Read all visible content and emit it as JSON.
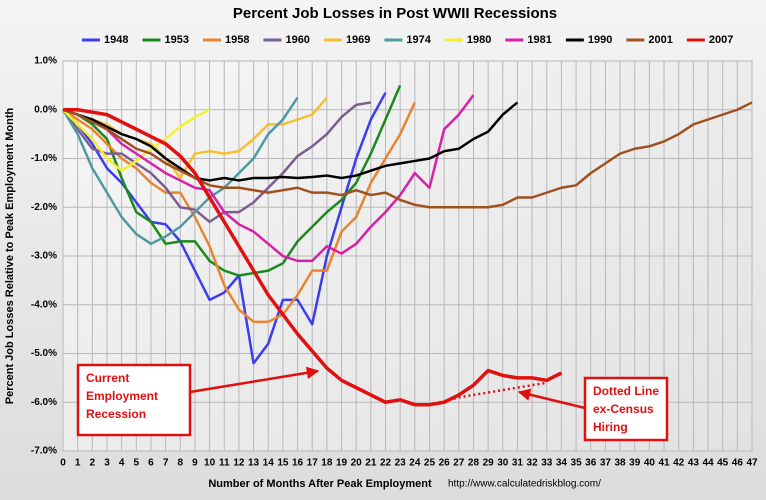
{
  "chart_data": {
    "type": "line",
    "title": "Percent Job Losses in Post WWII Recessions",
    "x_label": "Number of Months After Peak Employment",
    "y_label": "Percent Job Losses Relative to Peak Employment Month",
    "source": "http://www.calculatedriskblog.com/",
    "grid": true,
    "x": [
      0,
      1,
      2,
      3,
      4,
      5,
      6,
      7,
      8,
      9,
      10,
      11,
      12,
      13,
      14,
      15,
      16,
      17,
      18,
      19,
      20,
      21,
      22,
      23,
      24,
      25,
      26,
      27,
      28,
      29,
      30,
      31,
      32,
      33,
      34,
      35,
      36,
      37,
      38,
      39,
      40,
      41,
      42,
      43,
      44,
      45,
      46,
      47
    ],
    "xlim": [
      0,
      47
    ],
    "xticks": [
      0,
      1,
      2,
      3,
      4,
      5,
      6,
      7,
      8,
      9,
      10,
      11,
      12,
      13,
      14,
      15,
      16,
      17,
      18,
      19,
      20,
      21,
      22,
      23,
      24,
      25,
      26,
      27,
      28,
      29,
      30,
      31,
      32,
      33,
      34,
      35,
      36,
      37,
      38,
      39,
      40,
      41,
      42,
      43,
      44,
      45,
      46,
      47
    ],
    "ylim": [
      -7,
      1
    ],
    "yticks": [
      {
        "value": 1,
        "label": "1.0%"
      },
      {
        "value": 0,
        "label": "0.0%"
      },
      {
        "value": -1,
        "label": "-1.0%"
      },
      {
        "value": -2,
        "label": "-2.0%"
      },
      {
        "value": -3,
        "label": "-3.0%"
      },
      {
        "value": -4,
        "label": "-4.0%"
      },
      {
        "value": -5,
        "label": "-5.0%"
      },
      {
        "value": -6,
        "label": "-6.0%"
      },
      {
        "value": -7,
        "label": "-7.0%"
      }
    ],
    "series": [
      {
        "name": "1948",
        "color": "#3c3cf0",
        "values": [
          0,
          -0.3,
          -0.7,
          -1.2,
          -1.5,
          -1.9,
          -2.3,
          -2.35,
          -2.7,
          -3.3,
          -3.9,
          -3.75,
          -3.4,
          -5.2,
          -4.8,
          -3.9,
          -3.9,
          -4.4,
          -3.0,
          -2.0,
          -1.0,
          -0.2,
          0.35,
          null,
          null,
          null,
          null,
          null,
          null,
          null,
          null,
          null,
          null,
          null,
          null,
          null,
          null,
          null,
          null,
          null,
          null,
          null,
          null,
          null,
          null,
          null,
          null,
          null
        ]
      },
      {
        "name": "1953",
        "color": "#1a8a1a",
        "values": [
          0,
          -0.1,
          -0.3,
          -0.6,
          -1.4,
          -2.1,
          -2.3,
          -2.75,
          -2.7,
          -2.7,
          -3.1,
          -3.3,
          -3.4,
          -3.35,
          -3.3,
          -3.15,
          -2.7,
          -2.4,
          -2.1,
          -1.85,
          -1.5,
          -0.9,
          -0.2,
          0.5,
          null,
          null,
          null,
          null,
          null,
          null,
          null,
          null,
          null,
          null,
          null,
          null,
          null,
          null,
          null,
          null,
          null,
          null,
          null,
          null,
          null,
          null,
          null,
          null
        ]
      },
      {
        "name": "1958",
        "color": "#e8852e",
        "values": [
          0,
          -0.2,
          -0.4,
          -0.7,
          -1.0,
          -1.2,
          -1.5,
          -1.7,
          -1.7,
          -2.2,
          -2.8,
          -3.6,
          -4.1,
          -4.35,
          -4.35,
          -4.2,
          -3.8,
          -3.3,
          -3.3,
          -2.5,
          -2.2,
          -1.5,
          -1.0,
          -0.5,
          0.15,
          null,
          null,
          null,
          null,
          null,
          null,
          null,
          null,
          null,
          null,
          null,
          null,
          null,
          null,
          null,
          null,
          null,
          null,
          null,
          null,
          null,
          null,
          null
        ]
      },
      {
        "name": "1960",
        "color": "#7b5e8e",
        "values": [
          0,
          -0.4,
          -0.8,
          -0.9,
          -0.9,
          -1.1,
          -1.3,
          -1.6,
          -2.0,
          -2.05,
          -2.3,
          -2.1,
          -2.1,
          -1.9,
          -1.6,
          -1.3,
          -0.95,
          -0.75,
          -0.5,
          -0.15,
          0.1,
          0.15,
          null,
          null,
          null,
          null,
          null,
          null,
          null,
          null,
          null,
          null,
          null,
          null,
          null,
          null,
          null,
          null,
          null,
          null,
          null,
          null,
          null,
          null,
          null,
          null,
          null,
          null
        ]
      },
      {
        "name": "1969",
        "color": "#f5c030",
        "values": [
          0,
          -0.1,
          -0.2,
          -0.3,
          -0.5,
          -0.6,
          -0.7,
          -1.0,
          -1.4,
          -0.9,
          -0.85,
          -0.9,
          -0.85,
          -0.6,
          -0.3,
          -0.3,
          -0.2,
          -0.1,
          0.25,
          null,
          null,
          null,
          null,
          null,
          null,
          null,
          null,
          null,
          null,
          null,
          null,
          null,
          null,
          null,
          null,
          null,
          null,
          null,
          null,
          null,
          null,
          null,
          null,
          null,
          null,
          null,
          null,
          null
        ]
      },
      {
        "name": "1974",
        "color": "#4e9aa0",
        "values": [
          0,
          -0.5,
          -1.2,
          -1.7,
          -2.2,
          -2.55,
          -2.75,
          -2.6,
          -2.4,
          -2.1,
          -1.8,
          -1.6,
          -1.3,
          -1.0,
          -0.5,
          -0.2,
          0.25,
          null,
          null,
          null,
          null,
          null,
          null,
          null,
          null,
          null,
          null,
          null,
          null,
          null,
          null,
          null,
          null,
          null,
          null,
          null,
          null,
          null,
          null,
          null,
          null,
          null,
          null,
          null,
          null,
          null,
          null,
          null
        ]
      },
      {
        "name": "1980",
        "color": "#f2f030",
        "values": [
          0,
          -0.3,
          -0.6,
          -1.0,
          -1.25,
          -1.05,
          -0.8,
          -0.6,
          -0.35,
          -0.15,
          0.0,
          null,
          null,
          null,
          null,
          null,
          null,
          null,
          null,
          null,
          null,
          null,
          null,
          null,
          null,
          null,
          null,
          null,
          null,
          null,
          null,
          null,
          null,
          null,
          null,
          null,
          null,
          null,
          null,
          null,
          null,
          null,
          null,
          null,
          null,
          null,
          null,
          null
        ]
      },
      {
        "name": "1981",
        "color": "#d81fa8",
        "values": [
          0,
          -0.1,
          -0.2,
          -0.4,
          -0.7,
          -0.9,
          -1.1,
          -1.3,
          -1.45,
          -1.6,
          -1.65,
          -2.1,
          -2.35,
          -2.5,
          -2.75,
          -3.0,
          -3.1,
          -3.1,
          -2.8,
          -2.95,
          -2.75,
          -2.4,
          -2.1,
          -1.75,
          -1.3,
          -1.6,
          -0.4,
          -0.1,
          0.3,
          null,
          null,
          null,
          null,
          null,
          null,
          null,
          null,
          null,
          null,
          null,
          null,
          null,
          null,
          null,
          null,
          null,
          null,
          null
        ]
      },
      {
        "name": "1990",
        "color": "#000000",
        "values": [
          0,
          -0.1,
          -0.2,
          -0.35,
          -0.5,
          -0.6,
          -0.75,
          -1.0,
          -1.2,
          -1.4,
          -1.45,
          -1.4,
          -1.45,
          -1.4,
          -1.4,
          -1.38,
          -1.4,
          -1.38,
          -1.35,
          -1.4,
          -1.35,
          -1.25,
          -1.15,
          -1.1,
          -1.05,
          -1.0,
          -0.85,
          -0.8,
          -0.6,
          -0.45,
          -0.1,
          0.15,
          null,
          null,
          null,
          null,
          null,
          null,
          null,
          null,
          null,
          null,
          null,
          null,
          null,
          null,
          null,
          null
        ]
      },
      {
        "name": "2001",
        "color": "#a0501e",
        "values": [
          0,
          -0.1,
          -0.25,
          -0.4,
          -0.6,
          -0.8,
          -0.9,
          -1.1,
          -1.25,
          -1.4,
          -1.55,
          -1.6,
          -1.6,
          -1.65,
          -1.7,
          -1.65,
          -1.6,
          -1.7,
          -1.7,
          -1.75,
          -1.65,
          -1.75,
          -1.7,
          -1.85,
          -1.95,
          -2.0,
          -2.0,
          -2.0,
          -2.0,
          -2.0,
          -1.95,
          -1.8,
          -1.8,
          -1.7,
          -1.6,
          -1.55,
          -1.3,
          -1.1,
          -0.9,
          -0.8,
          -0.75,
          -0.65,
          -0.5,
          -0.3,
          -0.2,
          -0.1,
          0.0,
          0.15
        ]
      },
      {
        "name": "2007",
        "color": "#e01010",
        "width": 3.5,
        "values": [
          0,
          0,
          -0.05,
          -0.1,
          -0.25,
          -0.4,
          -0.55,
          -0.7,
          -0.95,
          -1.3,
          -1.8,
          -2.3,
          -2.8,
          -3.3,
          -3.8,
          -4.2,
          -4.6,
          -4.95,
          -5.3,
          -5.55,
          -5.7,
          -5.85,
          -6.0,
          -5.95,
          -6.05,
          -6.05,
          -6.0,
          -5.85,
          -5.65,
          -5.35,
          -5.45,
          -5.5,
          -5.5,
          -5.55,
          -5.4,
          null,
          null,
          null,
          null,
          null,
          null,
          null,
          null,
          null,
          null,
          null,
          null,
          null
        ]
      },
      {
        "color": "#e01010",
        "style": "dotted",
        "values": [
          null,
          null,
          null,
          null,
          null,
          null,
          null,
          null,
          null,
          null,
          null,
          null,
          null,
          null,
          null,
          null,
          null,
          null,
          null,
          null,
          null,
          null,
          null,
          null,
          null,
          -6.05,
          -5.98,
          -5.9,
          -5.85,
          -5.8,
          -5.75,
          -5.7,
          -5.65,
          -5.6,
          null,
          null,
          null,
          null,
          null,
          null,
          null,
          null,
          null,
          null,
          null,
          null,
          null,
          null
        ]
      }
    ],
    "annotations": [
      {
        "lines": [
          "Current",
          "Employment",
          "Recession"
        ]
      },
      {
        "lines": [
          "Dotted Line",
          "ex-Census",
          "Hiring"
        ]
      }
    ]
  }
}
